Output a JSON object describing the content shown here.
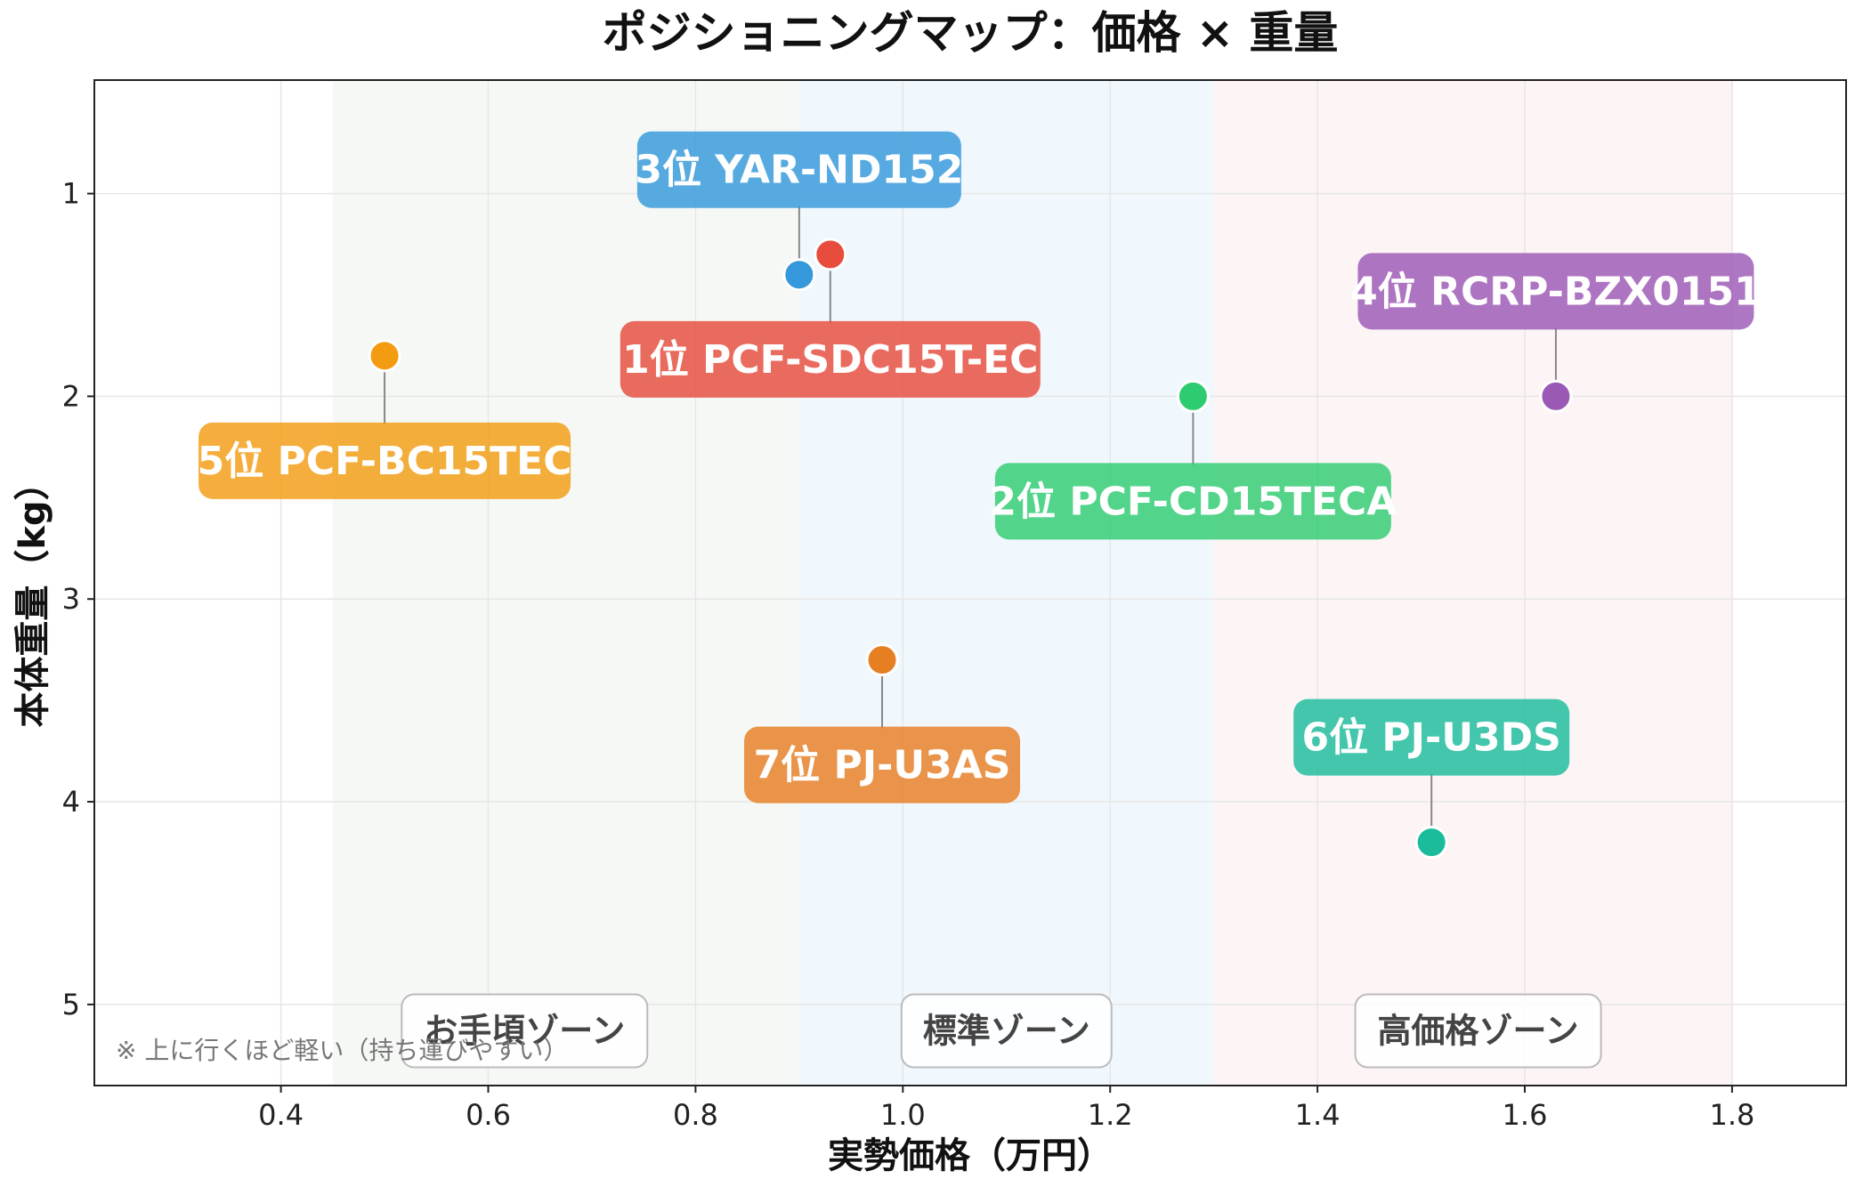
{
  "chart_data": {
    "type": "scatter",
    "title": "ポジショニングマップ：価格 × 重量",
    "xlabel": "実勢価格（万円）",
    "ylabel": "本体重量（kg）",
    "xlim": [
      0.22,
      1.91
    ],
    "ylim": [
      5.4,
      0.44
    ],
    "y_inverted": true,
    "x_ticks": [
      0.4,
      0.6,
      0.8,
      1.0,
      1.2,
      1.4,
      1.6,
      1.8
    ],
    "x_tick_labels": [
      "0.4",
      "0.6",
      "0.8",
      "1.0",
      "1.2",
      "1.4",
      "1.6",
      "1.8"
    ],
    "y_ticks": [
      1,
      2,
      3,
      4,
      5
    ],
    "y_tick_labels": [
      "1",
      "2",
      "3",
      "4",
      "5"
    ],
    "grid": true,
    "zones": [
      {
        "label": "お手頃ゾーン",
        "x_range": [
          0.45,
          0.9
        ],
        "color": "#eef3ee"
      },
      {
        "label": "標準ゾーン",
        "x_range": [
          0.9,
          1.3
        ],
        "color": "#e8f3fb"
      },
      {
        "label": "高価格ゾーン",
        "x_range": [
          1.3,
          1.8
        ],
        "color": "#fcefef"
      }
    ],
    "points": [
      {
        "label": "1位 PCF-SDC15T-EC",
        "x": 0.93,
        "y": 1.3,
        "color": "#e74c3c",
        "label_position": "below"
      },
      {
        "label": "2位 PCF-CD15TECA",
        "x": 1.28,
        "y": 2.0,
        "color": "#2ecc71",
        "label_position": "below"
      },
      {
        "label": "3位 YAR-ND152",
        "x": 0.9,
        "y": 1.4,
        "color": "#3498db",
        "label_position": "above"
      },
      {
        "label": "4位 RCRP-BZX0151",
        "x": 1.63,
        "y": 2.0,
        "color": "#9b59b6",
        "label_position": "above"
      },
      {
        "label": "5位 PCF-BC15TEC",
        "x": 0.5,
        "y": 1.8,
        "color": "#f39c12",
        "label_position": "below"
      },
      {
        "label": "6位 PJ-U3DS",
        "x": 1.51,
        "y": 4.2,
        "color": "#1abc9c",
        "label_position": "above"
      },
      {
        "label": "7位 PJ-U3AS",
        "x": 0.98,
        "y": 3.3,
        "color": "#e67e22",
        "label_position": "below"
      }
    ],
    "note": "※ 上に行くほど軽い（持ち運びやすい）"
  }
}
